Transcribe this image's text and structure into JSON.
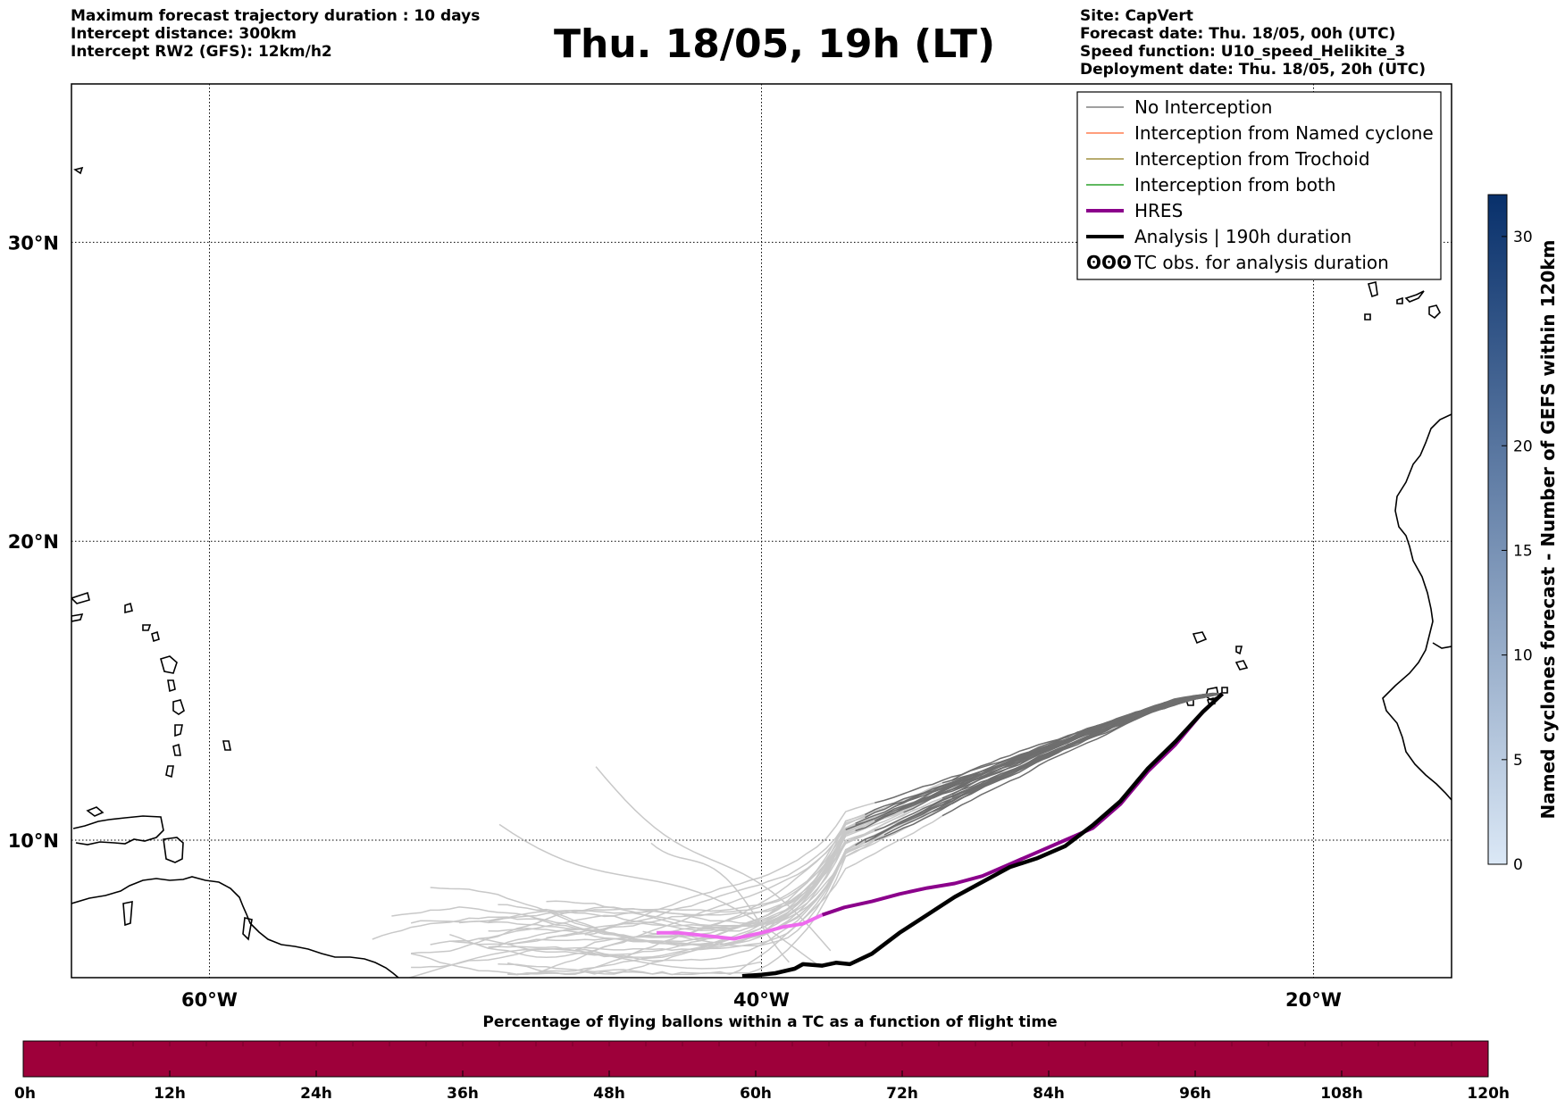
{
  "header": {
    "left_lines": [
      "Maximum forecast trajectory duration : 10 days",
      "Intercept distance: 300km",
      "Intercept RW2 (GFS):  12km/h2"
    ],
    "title": "Thu. 18/05, 19h (LT)",
    "right_lines": [
      "Site: CapVert",
      "Forecast date: Thu. 18/05, 00h (UTC)",
      "Speed function: U10_speed_Helikite_3",
      "Deployment date: Thu. 18/05, 20h (UTC)"
    ]
  },
  "map": {
    "lat_labels": [
      {
        "lat": 30,
        "label": "30°N"
      },
      {
        "lat": 20,
        "label": "20°N"
      },
      {
        "lat": 10,
        "label": "10°N"
      }
    ],
    "lon_labels": [
      {
        "lon": -60,
        "label": "60°W"
      },
      {
        "lon": -40,
        "label": "40°W"
      },
      {
        "lon": -20,
        "label": "20°W"
      }
    ],
    "extent": {
      "lon_min": -65,
      "lon_max": -15,
      "lat_min": 5.4,
      "lat_max": 35.3
    },
    "colors": {
      "ensemble_near": "#6e6e6e",
      "ensemble_far": "#c8c8c8",
      "hres_early": "#8b008b",
      "hres_late": "#ee6aee",
      "analysis": "#000000",
      "coast": "#000000"
    },
    "hres_track": [
      [
        -23.3,
        14.9
      ],
      [
        -24,
        14.3
      ],
      [
        -25,
        13.2
      ],
      [
        -26,
        12.3
      ],
      [
        -27,
        11.2
      ],
      [
        -28,
        10.4
      ],
      [
        -29,
        10.0
      ],
      [
        -30,
        9.6
      ],
      [
        -31,
        9.2
      ],
      [
        -32,
        8.8
      ],
      [
        -33,
        8.55
      ],
      [
        -34,
        8.4
      ],
      [
        -35,
        8.2
      ],
      [
        -36,
        7.95
      ],
      [
        -37,
        7.75
      ],
      [
        -37.8,
        7.5
      ],
      [
        -38.5,
        7.2
      ],
      [
        -39.2,
        7.1
      ],
      [
        -40,
        6.9
      ],
      [
        -41,
        6.7
      ],
      [
        -42,
        6.8
      ],
      [
        -43,
        6.9
      ],
      [
        -43.8,
        6.9
      ]
    ],
    "analysis_track": [
      [
        -23.3,
        14.9
      ],
      [
        -24,
        14.3
      ],
      [
        -25,
        13.3
      ],
      [
        -26,
        12.4
      ],
      [
        -27,
        11.3
      ],
      [
        -28,
        10.5
      ],
      [
        -29,
        9.8
      ],
      [
        -30,
        9.4
      ],
      [
        -31,
        9.1
      ],
      [
        -32,
        8.6
      ],
      [
        -33,
        8.1
      ],
      [
        -34,
        7.5
      ],
      [
        -35,
        6.9
      ],
      [
        -36,
        6.2
      ],
      [
        -36.8,
        5.85
      ],
      [
        -37.3,
        5.9
      ],
      [
        -37.8,
        5.8
      ],
      [
        -38.5,
        5.85
      ],
      [
        -38.8,
        5.7
      ],
      [
        -39.5,
        5.55
      ],
      [
        -40,
        5.5
      ],
      [
        -40.7,
        5.45
      ]
    ]
  },
  "legend": {
    "items": [
      {
        "label": "No Interception",
        "color": "#808080",
        "width": 1.5,
        "kind": "line"
      },
      {
        "label": "Interception from Named cyclone",
        "color": "#ff7f50",
        "width": 1.5,
        "kind": "line"
      },
      {
        "label": "Interception from Trochoid",
        "color": "#a09040",
        "width": 1.5,
        "kind": "line"
      },
      {
        "label": "Interception from both",
        "color": "#2ca02c",
        "width": 1.5,
        "kind": "line"
      },
      {
        "label": "HRES",
        "color": "#8b008b",
        "width": 4,
        "kind": "line"
      },
      {
        "label": "Analysis | 190h duration",
        "color": "#000000",
        "width": 4,
        "kind": "line"
      },
      {
        "label": "TC obs. for analysis duration",
        "color": "#000000",
        "width": 0,
        "kind": "symbol",
        "symbol": "ʘʘʘ"
      }
    ]
  },
  "right_colorbar": {
    "title": "Named cyclones forecast - Number of GEFS within 120km",
    "ticks": [
      0,
      5,
      10,
      15,
      20,
      30
    ],
    "vmax": 32,
    "color_low": "#dbe8f6",
    "color_high": "#08306b"
  },
  "bottom_colorbar": {
    "title": "Percentage of flying ballons within a TC as a function of flight time",
    "ticks": [
      "0h",
      "12h",
      "24h",
      "36h",
      "48h",
      "60h",
      "72h",
      "84h",
      "96h",
      "108h",
      "120h"
    ],
    "fill_color": "#9e003a"
  }
}
